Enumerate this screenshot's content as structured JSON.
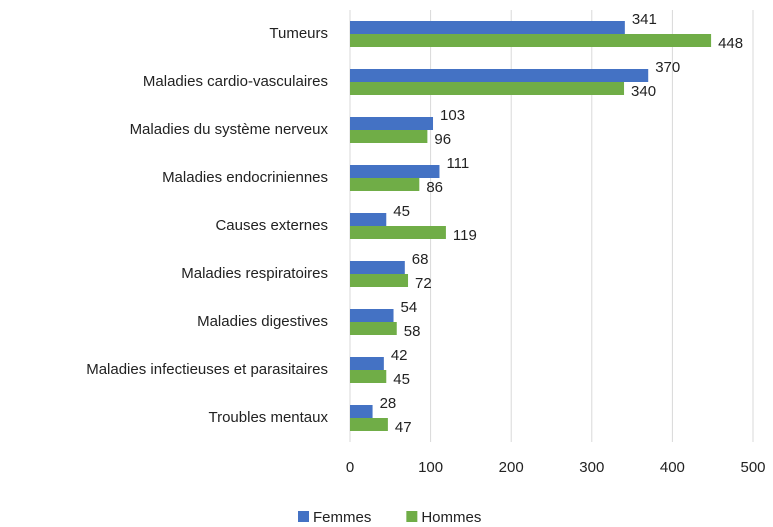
{
  "chart_data": {
    "type": "bar",
    "orientation": "horizontal",
    "categories": [
      "Tumeurs",
      "Maladies cardio-vasculaires",
      "Maladies du système nerveux",
      "Maladies endocriniennes",
      "Causes externes",
      "Maladies respiratoires",
      "Maladies digestives",
      "Maladies infectieuses et parasitaires",
      "Troubles mentaux"
    ],
    "series": [
      {
        "name": "Femmes",
        "color": "#4472c4",
        "values": [
          341,
          370,
          103,
          111,
          45,
          68,
          54,
          42,
          28
        ]
      },
      {
        "name": "Hommes",
        "color": "#70ad47",
        "values": [
          448,
          340,
          96,
          86,
          119,
          72,
          58,
          45,
          47
        ]
      }
    ],
    "xlim": [
      0,
      500
    ],
    "xticks": [
      0,
      100,
      200,
      300,
      400,
      500
    ],
    "grid": true,
    "legend": "bottom"
  }
}
